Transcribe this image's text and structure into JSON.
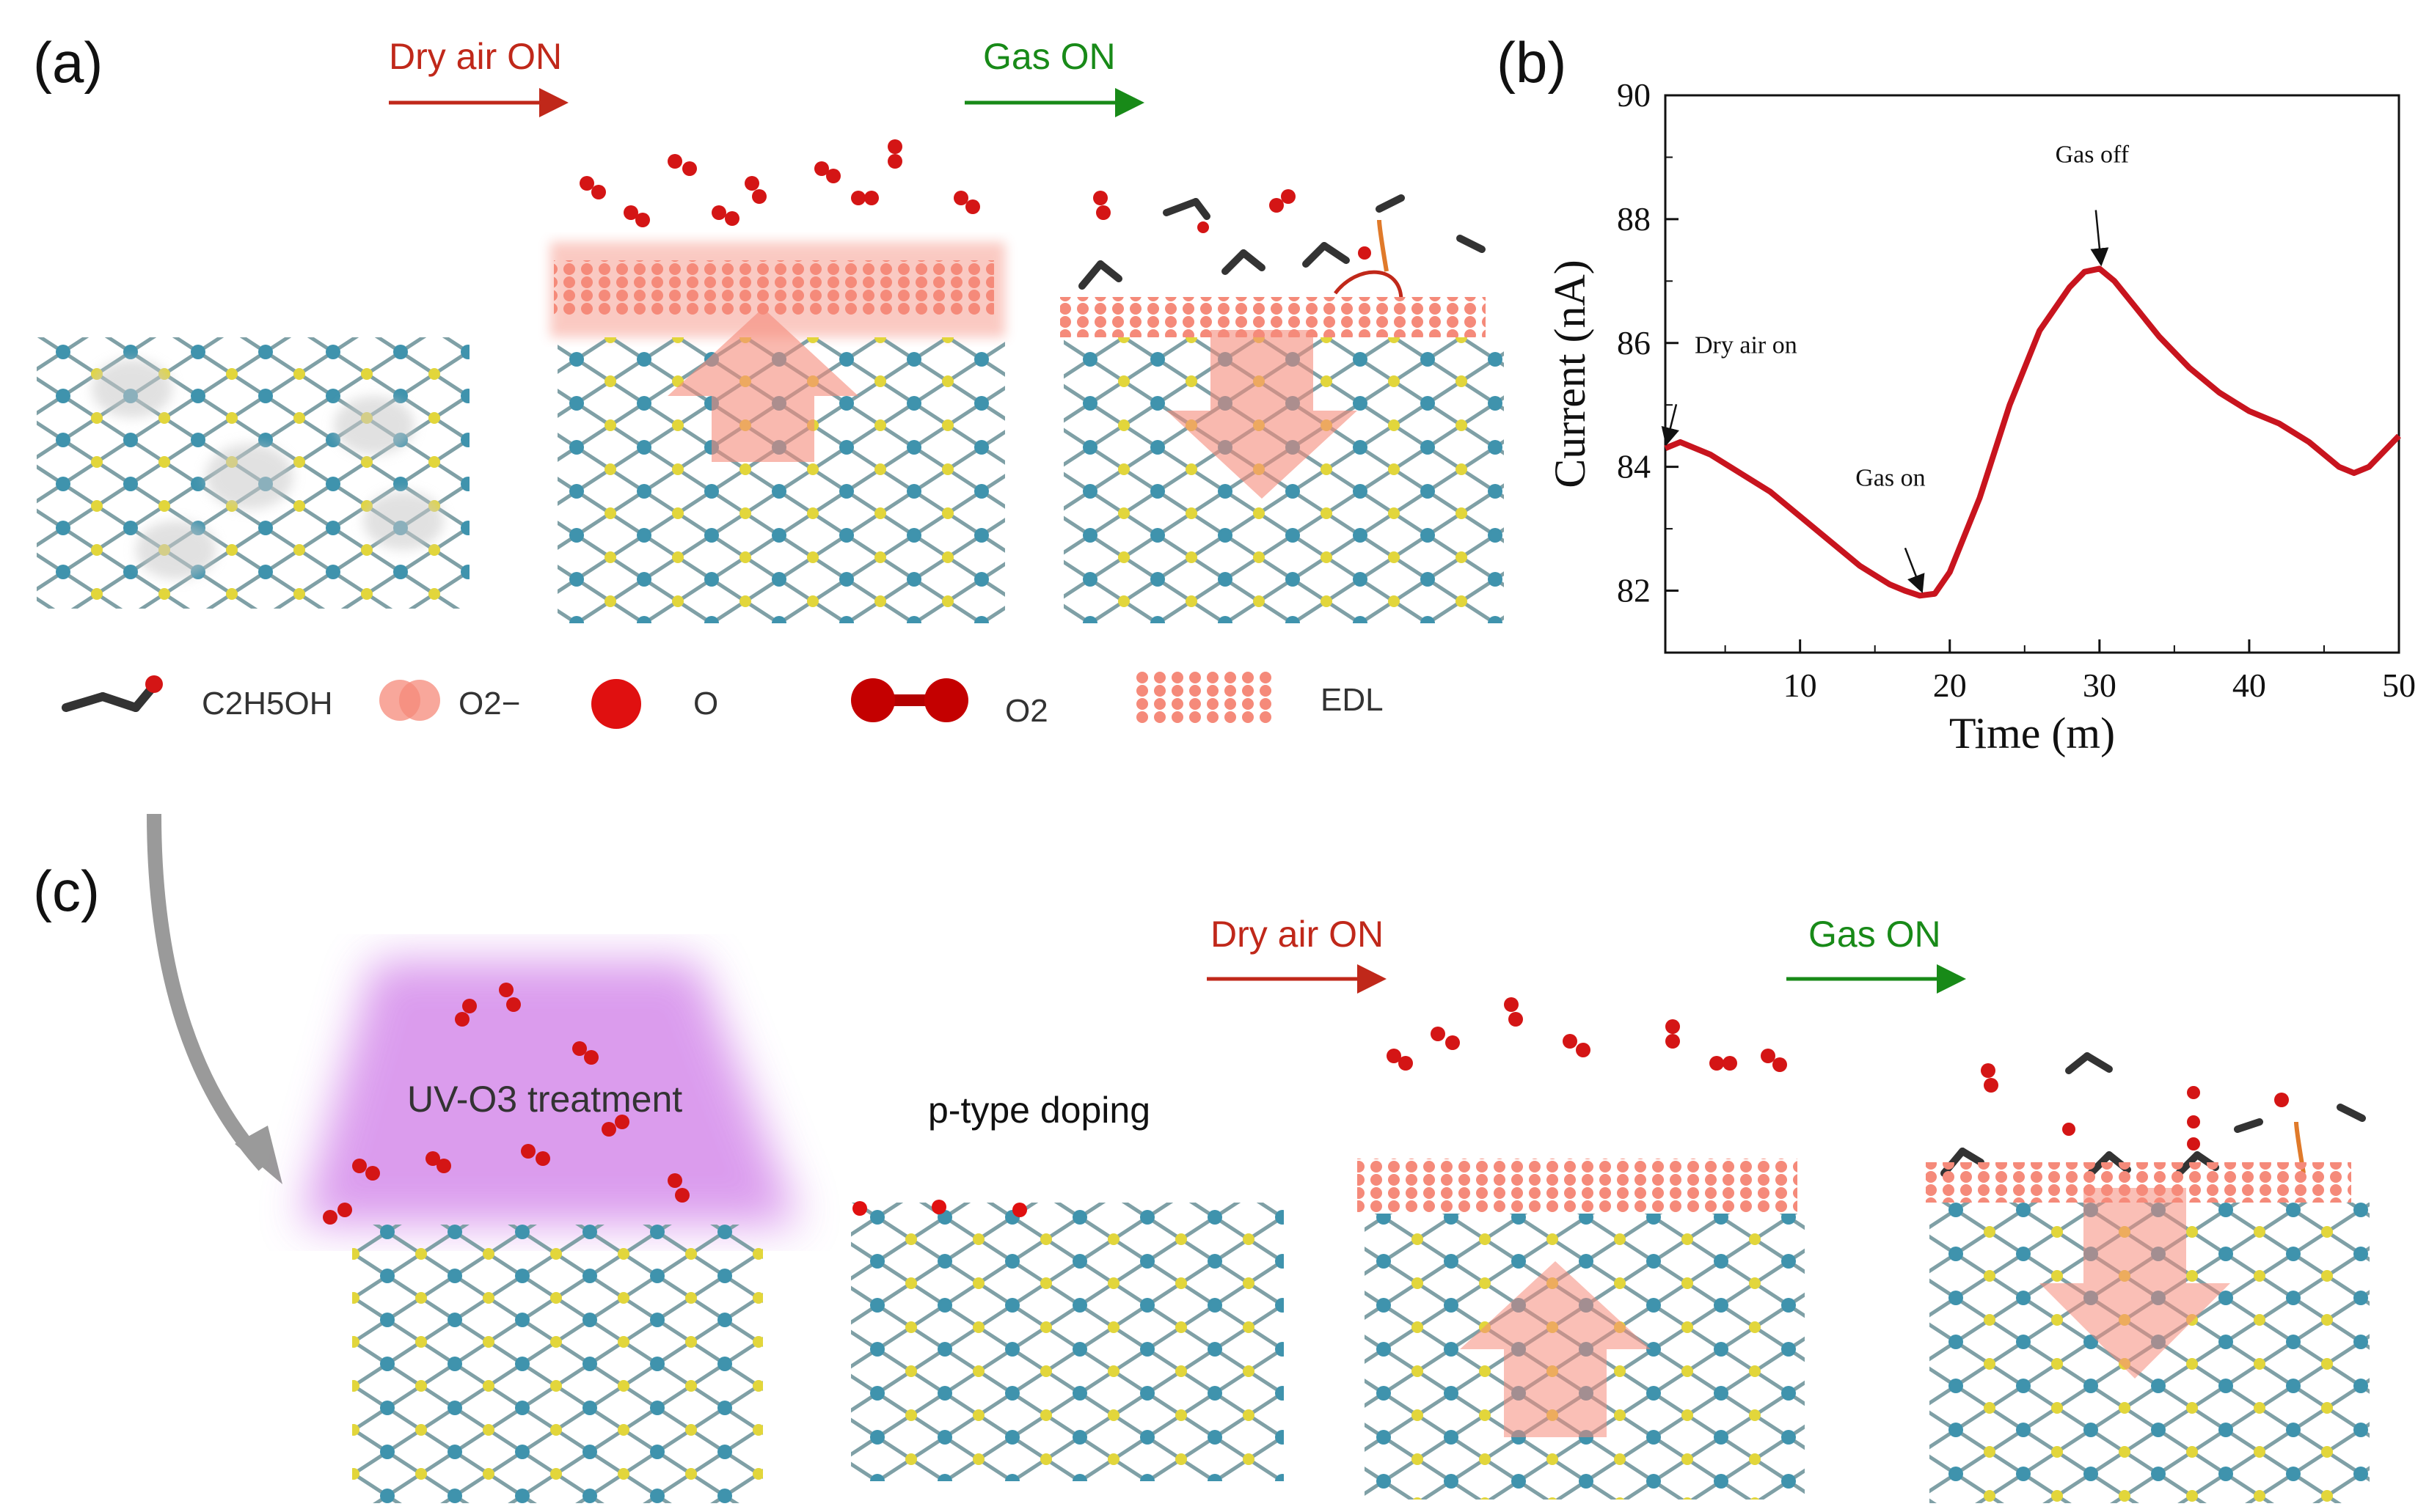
{
  "panels": {
    "a": {
      "label": "(a)",
      "step1": "Dry air ON",
      "step2": "Gas ON"
    },
    "b": {
      "label": "(b)"
    },
    "c": {
      "label": "(c)",
      "step1": "Dry air ON",
      "step2": "Gas ON",
      "treatment": "UV-O3 treatment",
      "doping": "p-type doping"
    }
  },
  "legend": {
    "ethanol": "C2H5OH",
    "superoxide": "O2−",
    "oxygen_atom": "O",
    "oxygen_molecule": "O2",
    "edl": "EDL"
  },
  "colors": {
    "red_arrow": "#c0281a",
    "green_arrow": "#188a18",
    "curve": "#c8141e",
    "edl": "#f58a7a",
    "uv": "#cf7ce8"
  },
  "chart_data": {
    "type": "line",
    "title": "",
    "xlabel": "Time (m)",
    "ylabel": "Current (nA)",
    "xlim": [
      1,
      50
    ],
    "ylim": [
      81,
      90
    ],
    "xticks": [
      10,
      20,
      30,
      40,
      50
    ],
    "yticks": [
      82,
      84,
      86,
      88,
      90
    ],
    "series": [
      {
        "name": "Current",
        "x": [
          1,
          2,
          4,
          6,
          8,
          10,
          12,
          14,
          16,
          17,
          18,
          19,
          20,
          22,
          24,
          26,
          28,
          29,
          30,
          31,
          32,
          34,
          36,
          38,
          40,
          42,
          44,
          46,
          47,
          48,
          49,
          50
        ],
        "y": [
          84.3,
          84.4,
          84.2,
          83.9,
          83.6,
          83.2,
          82.8,
          82.4,
          82.1,
          82.0,
          81.92,
          81.95,
          82.3,
          83.5,
          85.0,
          86.2,
          86.9,
          87.15,
          87.2,
          87.0,
          86.7,
          86.1,
          85.6,
          85.2,
          84.9,
          84.7,
          84.4,
          84.0,
          83.9,
          84.0,
          84.25,
          84.5
        ]
      }
    ],
    "annotations": [
      {
        "text": "Dry air on",
        "x": 1,
        "y": 84.3
      },
      {
        "text": "Gas on",
        "x": 18,
        "y": 81.92
      },
      {
        "text": "Gas off",
        "x": 30,
        "y": 87.2
      }
    ]
  }
}
